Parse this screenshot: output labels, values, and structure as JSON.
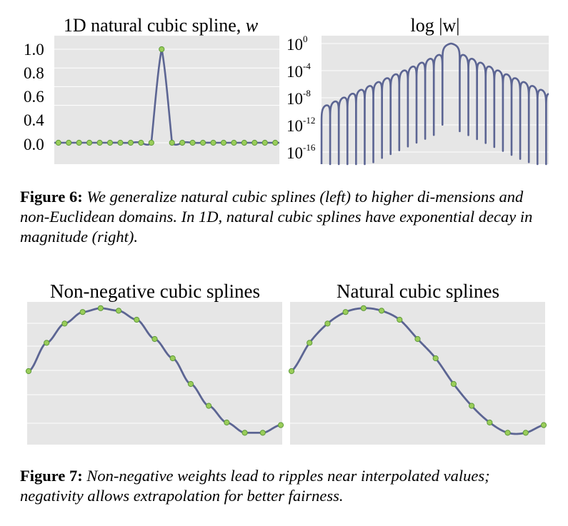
{
  "figure6": {
    "left_title": "1D natural cubic spline, ",
    "left_title_var": "w",
    "right_title": "log |w|",
    "left_yticks": [
      "1.0",
      "0.8",
      "0.6",
      "0.4",
      "0.0"
    ],
    "right_yticks": [
      {
        "base": "10",
        "exp": "0"
      },
      {
        "base": "10",
        "exp": "-4"
      },
      {
        "base": "10",
        "exp": "-8"
      },
      {
        "base": "10",
        "exp": "-12"
      },
      {
        "base": "10",
        "exp": "-16"
      }
    ],
    "caption_label": "Figure 6:",
    "caption_text": "We generalize natural cubic splines (left) to higher di-mensions and non-Euclidean domains. In 1D, natural cubic splines have exponential decay in magnitude (right)."
  },
  "figure7": {
    "left_title": "Non-negative cubic splines",
    "right_title": "Natural cubic splines",
    "caption_label": "Figure 7:",
    "caption_text": "Non-negative weights lead to ripples near interpolated values; negativity allows extrapolation for better fairness."
  },
  "colors": {
    "curve": "#5c6593",
    "panel": "#e6e6e6",
    "grid": "#ffffff",
    "dot_fill": "#9acd5a",
    "dot_stroke": "#5e9a3a"
  },
  "chart_data": [
    {
      "type": "line",
      "title": "1D natural cubic spline, w",
      "ylim": [
        -0.2,
        1.1
      ],
      "yticks": [
        0.0,
        0.4,
        0.6,
        0.8,
        1.0
      ],
      "knots": [
        -10,
        -9,
        -8,
        -7,
        -6,
        -5,
        -4,
        -3,
        -2,
        -1,
        0,
        1,
        2,
        3,
        4,
        5,
        6,
        7,
        8,
        9,
        10,
        11
      ],
      "knot_values": [
        0,
        0,
        0,
        0,
        0,
        0,
        0,
        0,
        0,
        0,
        1,
        0,
        0,
        0,
        0,
        0,
        0,
        0,
        0,
        0,
        0,
        0
      ],
      "grid": true
    },
    {
      "type": "line",
      "title": "log |w|",
      "yscale": "log",
      "yticks": [
        "10^0",
        "10^-4",
        "10^-8",
        "10^-12",
        "10^-16"
      ],
      "ylim": [
        1e-18,
        1
      ],
      "decay_factor_per_knot": 0.2679,
      "grid": true
    },
    {
      "type": "line",
      "title": "Non-negative cubic splines",
      "x": [
        0,
        1,
        2,
        3,
        4,
        5,
        6,
        7,
        8,
        9,
        10,
        11,
        12,
        13,
        14
      ],
      "y": [
        0.5,
        0.72,
        0.87,
        0.96,
        0.99,
        0.97,
        0.9,
        0.75,
        0.6,
        0.4,
        0.23,
        0.1,
        0.02,
        0.02,
        0.08
      ],
      "grid": true
    },
    {
      "type": "line",
      "title": "Natural cubic splines",
      "x": [
        0,
        1,
        2,
        3,
        4,
        5,
        6,
        7,
        8,
        9,
        10,
        11,
        12,
        13,
        14
      ],
      "y": [
        0.5,
        0.72,
        0.87,
        0.96,
        0.99,
        0.97,
        0.9,
        0.75,
        0.6,
        0.4,
        0.23,
        0.1,
        0.02,
        0.02,
        0.08
      ],
      "grid": true
    }
  ]
}
